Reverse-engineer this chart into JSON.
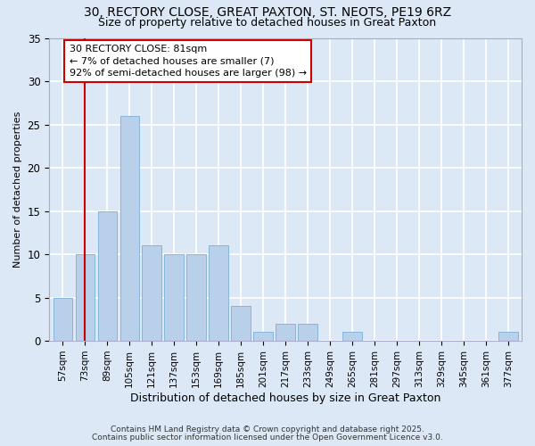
{
  "title1": "30, RECTORY CLOSE, GREAT PAXTON, ST. NEOTS, PE19 6RZ",
  "title2": "Size of property relative to detached houses in Great Paxton",
  "xlabel": "Distribution of detached houses by size in Great Paxton",
  "ylabel": "Number of detached properties",
  "categories": [
    "57sqm",
    "73sqm",
    "89sqm",
    "105sqm",
    "121sqm",
    "137sqm",
    "153sqm",
    "169sqm",
    "185sqm",
    "201sqm",
    "217sqm",
    "233sqm",
    "249sqm",
    "265sqm",
    "281sqm",
    "297sqm",
    "313sqm",
    "329sqm",
    "345sqm",
    "361sqm",
    "377sqm"
  ],
  "values": [
    5,
    10,
    15,
    26,
    11,
    10,
    10,
    11,
    4,
    1,
    2,
    2,
    0,
    1,
    0,
    0,
    0,
    0,
    0,
    0,
    1
  ],
  "bar_color": "#b8d0ea",
  "bar_edge_color": "#7aafd4",
  "background_color": "#dce8f5",
  "grid_color": "#ffffff",
  "annotation_box_text": "30 RECTORY CLOSE: 81sqm\n← 7% of detached houses are smaller (7)\n92% of semi-detached houses are larger (98) →",
  "annotation_box_color": "#cc0000",
  "vline_x": 1,
  "vline_color": "#cc0000",
  "ylim": [
    0,
    35
  ],
  "yticks": [
    0,
    5,
    10,
    15,
    20,
    25,
    30,
    35
  ],
  "footer1": "Contains HM Land Registry data © Crown copyright and database right 2025.",
  "footer2": "Contains public sector information licensed under the Open Government Licence v3.0."
}
